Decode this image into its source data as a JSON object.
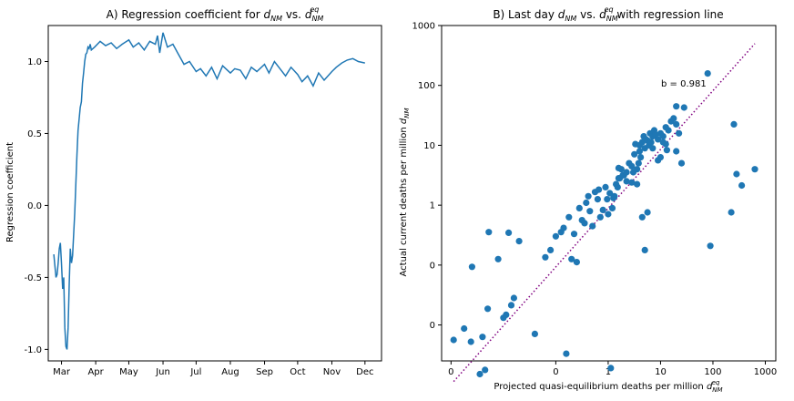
{
  "chart_data": [
    {
      "type": "line",
      "title": "A) Regression coefficient for d_NM vs. d_NM^eq",
      "title_parts": [
        "A) Regression coefficient for ",
        "d",
        "NM",
        " vs. ",
        "d",
        "NM",
        "eq"
      ],
      "xlabel": "",
      "ylabel": "Regression coefficient",
      "xticks": [
        "Mar",
        "Apr",
        "May",
        "Jun",
        "Jul",
        "Aug",
        "Sep",
        "Oct",
        "Nov",
        "Dec"
      ],
      "xtick_dates": [
        "2020-03-01",
        "2020-04-01",
        "2020-05-01",
        "2020-06-01",
        "2020-07-01",
        "2020-08-01",
        "2020-09-01",
        "2020-10-01",
        "2020-11-01",
        "2020-12-01"
      ],
      "xlim": [
        "2020-02-18",
        "2020-12-16"
      ],
      "yticks": [
        "-1.0",
        "-0.5",
        "0.0",
        "0.5",
        "1.0"
      ],
      "ytick_values": [
        -1.0,
        -0.5,
        0.0,
        0.5,
        1.0
      ],
      "ylim": [
        -1.08,
        1.25
      ],
      "color": "#1f77b4",
      "series": [
        {
          "x": [
            "2020-02-23",
            "2020-02-24",
            "2020-02-25",
            "2020-02-26",
            "2020-02-27",
            "2020-02-28",
            "2020-02-29",
            "2020-03-01",
            "2020-03-02",
            "2020-03-03",
            "2020-03-04",
            "2020-03-05",
            "2020-03-06",
            "2020-03-07",
            "2020-03-08",
            "2020-03-09",
            "2020-03-10",
            "2020-03-11",
            "2020-03-12",
            "2020-03-13",
            "2020-03-14",
            "2020-03-15",
            "2020-03-16",
            "2020-03-17",
            "2020-03-18",
            "2020-03-19",
            "2020-03-20",
            "2020-03-21",
            "2020-03-22",
            "2020-03-23",
            "2020-03-24",
            "2020-03-25",
            "2020-03-26",
            "2020-03-27",
            "2020-03-28",
            "2020-03-31",
            "2020-04-05",
            "2020-04-10",
            "2020-04-15",
            "2020-04-20",
            "2020-04-25",
            "2020-05-01",
            "2020-05-05",
            "2020-05-10",
            "2020-05-15",
            "2020-05-20",
            "2020-05-25",
            "2020-05-27",
            "2020-05-29",
            "2020-06-01",
            "2020-06-05",
            "2020-06-10",
            "2020-06-15",
            "2020-06-20",
            "2020-06-25",
            "2020-07-01",
            "2020-07-05",
            "2020-07-10",
            "2020-07-15",
            "2020-07-20",
            "2020-07-25",
            "2020-08-01",
            "2020-08-05",
            "2020-08-10",
            "2020-08-15",
            "2020-08-20",
            "2020-08-25",
            "2020-09-01",
            "2020-09-05",
            "2020-09-10",
            "2020-09-15",
            "2020-09-20",
            "2020-09-25",
            "2020-10-01",
            "2020-10-05",
            "2020-10-10",
            "2020-10-15",
            "2020-10-20",
            "2020-10-25",
            "2020-11-01",
            "2020-11-05",
            "2020-11-10",
            "2020-11-15",
            "2020-11-20",
            "2020-11-25",
            "2020-12-01"
          ],
          "y": [
            -0.34,
            -0.42,
            -0.5,
            -0.48,
            -0.4,
            -0.3,
            -0.26,
            -0.4,
            -0.58,
            -0.5,
            -0.85,
            -0.98,
            -1.0,
            -0.85,
            -0.55,
            -0.3,
            -0.4,
            -0.35,
            -0.2,
            -0.05,
            0.15,
            0.35,
            0.52,
            0.6,
            0.68,
            0.72,
            0.85,
            0.92,
            1.0,
            1.05,
            1.06,
            1.1,
            1.09,
            1.12,
            1.08,
            1.1,
            1.14,
            1.11,
            1.13,
            1.09,
            1.12,
            1.15,
            1.1,
            1.13,
            1.08,
            1.14,
            1.12,
            1.18,
            1.06,
            1.2,
            1.1,
            1.12,
            1.05,
            0.98,
            1.0,
            0.93,
            0.95,
            0.9,
            0.96,
            0.88,
            0.97,
            0.92,
            0.95,
            0.94,
            0.88,
            0.96,
            0.93,
            0.98,
            0.92,
            1.0,
            0.95,
            0.9,
            0.96,
            0.91,
            0.86,
            0.9,
            0.83,
            0.92,
            0.87,
            0.93,
            0.96,
            0.99,
            1.01,
            1.02,
            1.0,
            0.99
          ]
        }
      ]
    },
    {
      "type": "scatter",
      "title": "B) Last day d_NM vs. d_NM^eq with regression line",
      "title_parts": [
        "B) Last day ",
        "d",
        "NM",
        " vs. ",
        "d",
        "NM",
        "eq",
        " with regression line"
      ],
      "xlabel": "Projected quasi-equilibrium deaths per million d_NM^eq",
      "xlabel_parts": [
        "Projected quasi-equilibrium deaths per million ",
        "d",
        "NM",
        "eq"
      ],
      "ylabel": "Actual current deaths per million d_NM",
      "ylabel_parts": [
        "Actual current deaths per million ",
        "d",
        "NM"
      ],
      "scale": "symlog-like",
      "xticks": [
        "0",
        "0",
        "1",
        "10",
        "100",
        "1000"
      ],
      "yticks": [
        "0",
        "0",
        "1",
        "10",
        "100",
        "1000"
      ],
      "xlim_decades": [
        -3.18,
        3.2
      ],
      "ylim_decades": [
        -2.6,
        3.0
      ],
      "annotation": "b = 0.981",
      "regression": {
        "slope": 0.981,
        "line_style": "dotted",
        "color": "#800080",
        "x_range_decades": [
          -2.95,
          2.8
        ]
      },
      "color": "#1f77b4",
      "points_log10": [
        [
          -2.95,
          -2.25
        ],
        [
          -2.75,
          -2.06
        ],
        [
          -2.62,
          -2.28
        ],
        [
          -2.6,
          -1.03
        ],
        [
          -2.45,
          -2.82
        ],
        [
          -2.4,
          -2.2
        ],
        [
          -2.35,
          -2.75
        ],
        [
          -2.3,
          -1.73
        ],
        [
          -2.28,
          -0.45
        ],
        [
          -2.1,
          -0.9
        ],
        [
          -2.0,
          -1.88
        ],
        [
          -1.95,
          -1.83
        ],
        [
          -1.9,
          -0.46
        ],
        [
          -1.85,
          -1.67
        ],
        [
          -1.8,
          -1.55
        ],
        [
          -1.7,
          -0.6
        ],
        [
          -1.4,
          -2.15
        ],
        [
          -1.2,
          -0.87
        ],
        [
          -1.1,
          -0.75
        ],
        [
          -1.0,
          -0.52
        ],
        [
          -0.9,
          -0.45
        ],
        [
          -0.85,
          -0.38
        ],
        [
          -0.8,
          -2.48
        ],
        [
          -0.75,
          -0.2
        ],
        [
          -0.7,
          -0.9
        ],
        [
          -0.65,
          -0.48
        ],
        [
          -0.6,
          -0.95
        ],
        [
          -0.55,
          -0.05
        ],
        [
          -0.5,
          -0.25
        ],
        [
          -0.45,
          -0.3
        ],
        [
          -0.42,
          0.04
        ],
        [
          -0.38,
          0.15
        ],
        [
          -0.35,
          -0.1
        ],
        [
          -0.3,
          -0.35
        ],
        [
          -0.25,
          0.22
        ],
        [
          -0.2,
          0.1
        ],
        [
          -0.18,
          0.26
        ],
        [
          -0.15,
          -0.2
        ],
        [
          -0.1,
          -0.08
        ],
        [
          -0.05,
          0.3
        ],
        [
          -0.02,
          0.1
        ],
        [
          0.0,
          -0.15
        ],
        [
          0.03,
          0.2
        ],
        [
          0.05,
          -2.72
        ],
        [
          0.08,
          -0.05
        ],
        [
          0.1,
          0.12
        ],
        [
          0.12,
          0.15
        ],
        [
          0.15,
          0.35
        ],
        [
          0.18,
          0.3
        ],
        [
          0.2,
          0.45
        ],
        [
          0.22,
          0.45
        ],
        [
          0.25,
          0.6
        ],
        [
          0.28,
          0.5
        ],
        [
          0.3,
          0.5
        ],
        [
          0.35,
          0.4
        ],
        [
          0.4,
          0.7
        ],
        [
          0.45,
          0.65
        ],
        [
          0.5,
          0.85
        ],
        [
          0.52,
          1.02
        ],
        [
          0.55,
          0.6
        ],
        [
          0.58,
          0.7
        ],
        [
          0.6,
          0.9
        ],
        [
          0.62,
          0.8
        ],
        [
          0.65,
          1.05
        ],
        [
          0.68,
          1.15
        ],
        [
          0.7,
          0.95
        ],
        [
          0.72,
          1.1
        ],
        [
          0.75,
          1.08
        ],
        [
          0.78,
          1.0
        ],
        [
          0.8,
          1.2
        ],
        [
          0.82,
          1.05
        ],
        [
          0.85,
          1.15
        ],
        [
          0.88,
          1.25
        ],
        [
          0.9,
          1.18
        ],
        [
          0.95,
          1.1
        ],
        [
          1.0,
          1.2
        ],
        [
          1.05,
          1.15
        ],
        [
          1.1,
          1.3
        ],
        [
          1.15,
          1.25
        ],
        [
          1.2,
          1.4
        ],
        [
          1.25,
          1.45
        ],
        [
          1.3,
          1.35
        ],
        [
          1.35,
          1.2
        ],
        [
          1.4,
          0.7
        ],
        [
          0.65,
          -0.2
        ],
        [
          0.55,
          0.35
        ],
        [
          0.45,
          0.38
        ],
        [
          0.35,
          0.55
        ],
        [
          0.75,
          -0.12
        ],
        [
          0.7,
          -0.75
        ],
        [
          0.95,
          0.75
        ],
        [
          1.05,
          1.05
        ],
        [
          1.3,
          0.9
        ],
        [
          1.1,
          1.02
        ],
        [
          1.0,
          0.8
        ],
        [
          0.85,
          0.95
        ],
        [
          0.6,
          1.0
        ],
        [
          0.48,
          0.55
        ],
        [
          1.12,
          0.92
        ],
        [
          1.9,
          2.2
        ],
        [
          1.95,
          -0.68
        ],
        [
          2.35,
          -0.12
        ],
        [
          2.4,
          1.35
        ],
        [
          2.45,
          0.52
        ],
        [
          2.55,
          0.33
        ],
        [
          2.8,
          0.6
        ],
        [
          1.3,
          1.65
        ],
        [
          1.45,
          1.63
        ],
        [
          0.2,
          0.62
        ]
      ]
    }
  ]
}
